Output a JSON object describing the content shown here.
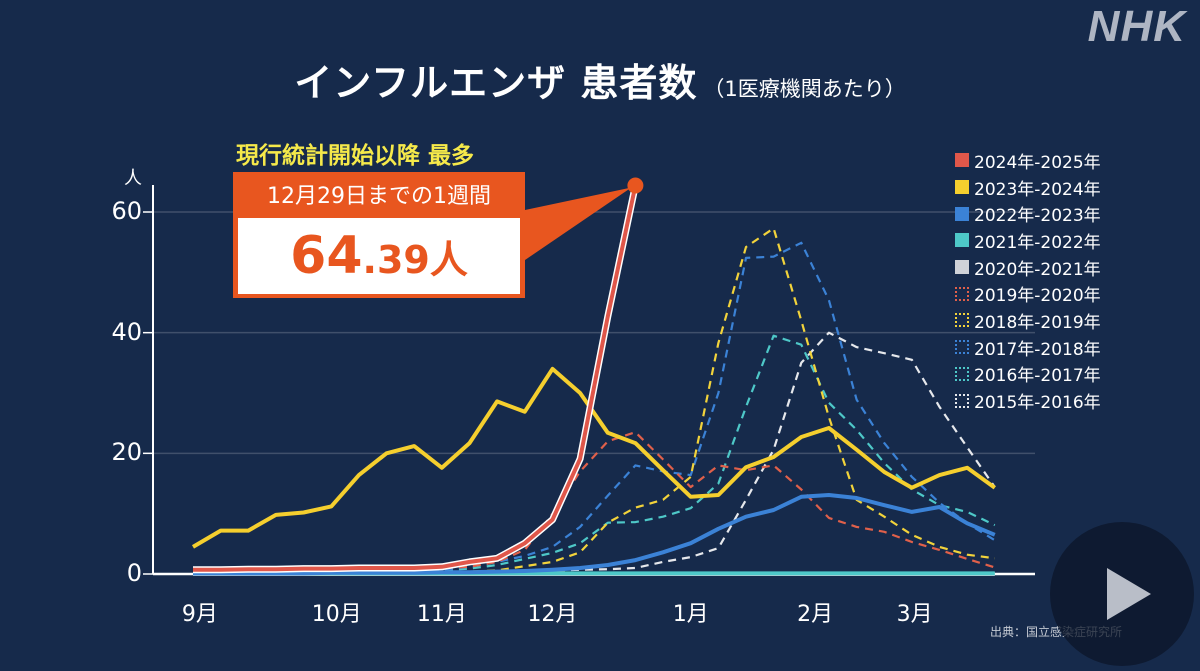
{
  "logo": "NHK",
  "title": {
    "main": "インフルエンザ 患者数",
    "sub": "（1医療機関あたり）"
  },
  "annotation": {
    "note": "現行統計開始以降 最多",
    "period": "12月29日までの1週間",
    "value_big": "64",
    "value_small": ".39人"
  },
  "source": "出典：国立感染症研究所",
  "play_button": "play-icon",
  "chart_data": {
    "type": "line",
    "title": "インフルエンザ 患者数（1医療機関あたり）",
    "ylabel": "人",
    "ylim": [
      0,
      60
    ],
    "yticks": [
      "0",
      "20",
      "40",
      "60"
    ],
    "xticks": [
      "9月",
      "10月",
      "11月",
      "12月",
      "1月",
      "2月",
      "3月"
    ],
    "grid": true,
    "legend_position": "right",
    "series": [
      {
        "name": "2015年-2016年",
        "color": "#e6e8ec",
        "style": "dashed",
        "values": [
          0.1,
          0.1,
          0.1,
          0.1,
          0.1,
          0.1,
          0.2,
          0.2,
          0.2,
          0.3,
          0.3,
          0.4,
          0.5,
          0.6,
          0.7,
          0.8,
          1.0,
          2.0,
          2.8,
          4.3,
          12.3,
          20.6,
          35.0,
          40.0,
          37.6,
          36.6,
          35.5,
          27.7,
          21.0,
          14.4
        ]
      },
      {
        "name": "2016年-2017年",
        "color": "#4ec8c8",
        "style": "dashed",
        "values": [
          0.1,
          0.1,
          0.1,
          0.1,
          0.2,
          0.2,
          0.3,
          0.3,
          0.4,
          0.6,
          0.9,
          1.5,
          2.5,
          3.5,
          5.1,
          8.5,
          8.6,
          9.5,
          10.9,
          15.0,
          27.7,
          39.5,
          38.0,
          28.4,
          23.9,
          18.4,
          14.0,
          11.4,
          10.3,
          8.1
        ]
      },
      {
        "name": "2017年-2018年",
        "color": "#3b82d6",
        "style": "dashed",
        "values": [
          0.1,
          0.1,
          0.1,
          0.1,
          0.2,
          0.2,
          0.3,
          0.4,
          0.5,
          0.7,
          1.2,
          2.0,
          3.0,
          4.5,
          7.8,
          13.0,
          18.0,
          17.0,
          16.4,
          30.0,
          52.4,
          52.6,
          54.9,
          45.4,
          28.9,
          21.7,
          16.1,
          11.8,
          8.4,
          5.6
        ]
      },
      {
        "name": "2018年-2019年",
        "color": "#f2d33b",
        "style": "dashed",
        "values": [
          0.1,
          0.1,
          0.1,
          0.1,
          0.1,
          0.1,
          0.2,
          0.2,
          0.2,
          0.3,
          0.4,
          0.6,
          1.3,
          2.0,
          3.6,
          8.5,
          11.0,
          12.3,
          16.1,
          38.3,
          54.2,
          57.3,
          42.0,
          26.0,
          12.3,
          9.5,
          6.5,
          4.5,
          3.2,
          2.6
        ]
      },
      {
        "name": "2019年-2020年",
        "color": "#e0604a",
        "style": "dashed",
        "values": [
          0.8,
          0.9,
          0.9,
          0.9,
          0.9,
          0.9,
          1.0,
          1.0,
          1.0,
          1.0,
          1.2,
          2.0,
          4.0,
          10.0,
          17.0,
          22.0,
          23.5,
          19.0,
          14.4,
          18.0,
          17.2,
          18.0,
          14.0,
          9.3,
          7.8,
          7.0,
          5.3,
          4.0,
          2.5,
          1.1
        ]
      },
      {
        "name": "2020年-2021年",
        "color": "#cfd2d8",
        "style": "solid",
        "values": [
          0.0,
          0.0,
          0.0,
          0.0,
          0.0,
          0.0,
          0.0,
          0.0,
          0.0,
          0.0,
          0.0,
          0.0,
          0.0,
          0.0,
          0.0,
          0.0,
          0.0,
          0.0,
          0.0,
          0.0,
          0.0,
          0.0,
          0.0,
          0.0,
          0.0,
          0.0,
          0.0,
          0.0,
          0.0,
          0.0
        ]
      },
      {
        "name": "2021年-2022年",
        "color": "#4ec8c8",
        "style": "solid",
        "values": [
          0.1,
          0.1,
          0.1,
          0.1,
          0.1,
          0.1,
          0.1,
          0.1,
          0.1,
          0.1,
          0.1,
          0.1,
          0.1,
          0.1,
          0.1,
          0.1,
          0.1,
          0.1,
          0.1,
          0.1,
          0.1,
          0.1,
          0.1,
          0.1,
          0.1,
          0.1,
          0.1,
          0.1,
          0.1,
          0.1
        ]
      },
      {
        "name": "2022年-2023年",
        "color": "#3b82d6",
        "style": "solid",
        "values": [
          0.1,
          0.1,
          0.1,
          0.1,
          0.1,
          0.2,
          0.2,
          0.2,
          0.2,
          0.3,
          0.3,
          0.4,
          0.5,
          0.7,
          1.0,
          1.5,
          2.3,
          3.6,
          5.1,
          7.5,
          9.5,
          10.6,
          12.8,
          13.1,
          12.6,
          11.4,
          10.3,
          11.1,
          8.4,
          6.5
        ]
      },
      {
        "name": "2023年-2024年",
        "color": "#f5cf2e",
        "style": "solid",
        "values": [
          4.5,
          7.2,
          7.2,
          9.8,
          10.2,
          11.2,
          16.4,
          20.0,
          21.2,
          17.6,
          21.7,
          28.6,
          26.9,
          34.0,
          30.0,
          23.4,
          21.7,
          17.2,
          12.8,
          13.1,
          17.7,
          19.4,
          22.7,
          24.2,
          20.6,
          16.9,
          14.3,
          16.4,
          17.6,
          14.3
        ]
      },
      {
        "name": "2024年-2025年",
        "color": "#e0574a",
        "style": "solid",
        "values": [
          0.7,
          0.7,
          0.8,
          0.8,
          0.9,
          0.9,
          1.0,
          1.0,
          1.0,
          1.2,
          2.0,
          2.6,
          5.1,
          9.0,
          19.1,
          42.7,
          64.39
        ]
      }
    ],
    "legend_order": [
      "2024年-2025年",
      "2023年-2024年",
      "2022年-2023年",
      "2021年-2022年",
      "2020年-2021年",
      "2019年-2020年",
      "2018年-2019年",
      "2017年-2018年",
      "2016年-2017年",
      "2015年-2016年"
    ],
    "highlight": {
      "series": "2024年-2025年",
      "value": 64.39,
      "color": "#e8561f"
    }
  }
}
